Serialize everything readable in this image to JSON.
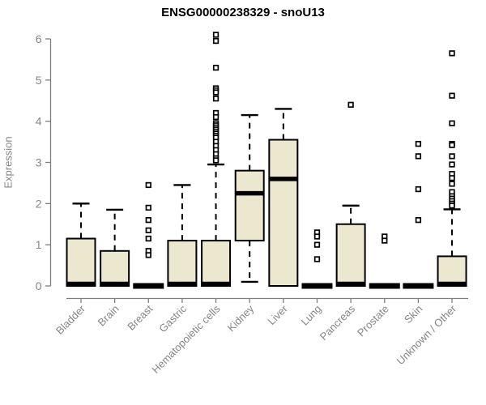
{
  "chart_data": {
    "type": "boxplot",
    "title": "ENSG00000238329 - snoU13",
    "ylabel": "Expression",
    "xlabel": "",
    "ylim": [
      0,
      6.2
    ],
    "yticks": [
      0,
      1,
      2,
      3,
      4,
      5,
      6
    ],
    "grid": false,
    "legend": "none",
    "categories": [
      "Bladder",
      "Brain",
      "Breast",
      "Gastric",
      "Hematopoietic cells",
      "Kidney",
      "Liver",
      "Lung",
      "Pancreas",
      "Prostate",
      "Skin",
      "Unknown / Other"
    ],
    "series": [
      {
        "name": "Bladder",
        "whisker_low": 0,
        "q1": 0,
        "median": 0.05,
        "q3": 1.15,
        "whisker_high": 2.0,
        "outliers": []
      },
      {
        "name": "Brain",
        "whisker_low": 0,
        "q1": 0,
        "median": 0.05,
        "q3": 0.85,
        "whisker_high": 1.85,
        "outliers": []
      },
      {
        "name": "Breast",
        "whisker_low": 0,
        "q1": 0,
        "median": 0,
        "q3": 0,
        "whisker_high": 0,
        "outliers": [
          2.45,
          1.9,
          1.6,
          1.35,
          1.15,
          0.85,
          0.75
        ]
      },
      {
        "name": "Gastric",
        "whisker_low": 0,
        "q1": 0,
        "median": 0.05,
        "q3": 1.1,
        "whisker_high": 2.45,
        "outliers": []
      },
      {
        "name": "Hematopoietic cells",
        "whisker_low": 0,
        "q1": 0,
        "median": 0.05,
        "q3": 1.1,
        "whisker_high": 2.95,
        "outliers": [
          6.1,
          5.95,
          5.3,
          4.8,
          4.75,
          4.7,
          4.55,
          4.2,
          4.1,
          3.95,
          3.9,
          3.85,
          3.8,
          3.75,
          3.7,
          3.65,
          3.6,
          3.5,
          3.4,
          3.3,
          3.2,
          3.1,
          3.05
        ]
      },
      {
        "name": "Kidney",
        "whisker_low": 0.1,
        "q1": 1.1,
        "median": 2.25,
        "q3": 2.8,
        "whisker_high": 4.15,
        "outliers": []
      },
      {
        "name": "Liver",
        "whisker_low": 0,
        "q1": 0,
        "median": 2.6,
        "q3": 3.55,
        "whisker_high": 4.3,
        "outliers": []
      },
      {
        "name": "Lung",
        "whisker_low": 0,
        "q1": 0,
        "median": 0,
        "q3": 0,
        "whisker_high": 0,
        "outliers": [
          1.3,
          1.2,
          1.0,
          0.65
        ]
      },
      {
        "name": "Pancreas",
        "whisker_low": 0,
        "q1": 0,
        "median": 0.05,
        "q3": 1.5,
        "whisker_high": 1.95,
        "outliers": [
          4.4
        ]
      },
      {
        "name": "Prostate",
        "whisker_low": 0,
        "q1": 0,
        "median": 0,
        "q3": 0,
        "whisker_high": 0,
        "outliers": [
          1.2,
          1.1
        ]
      },
      {
        "name": "Skin",
        "whisker_low": 0,
        "q1": 0,
        "median": 0,
        "q3": 0,
        "whisker_high": 0,
        "outliers": [
          3.45,
          3.15,
          2.35,
          1.6
        ]
      },
      {
        "name": "Unknown / Other",
        "whisker_low": 0,
        "q1": 0,
        "median": 0.05,
        "q3": 0.72,
        "whisker_high": 1.86,
        "outliers": [
          5.65,
          4.62,
          3.95,
          3.45,
          3.42,
          3.15,
          2.95,
          2.72,
          2.62,
          2.48,
          2.28,
          2.18,
          2.12,
          2.06,
          2.0,
          1.95
        ]
      }
    ],
    "colors": {
      "background": "#FFFFFF",
      "box_fill": "#ECE7CF",
      "box_stroke": "#000000",
      "median": "#000000",
      "whisker": "#000000",
      "outlier_stroke": "#000000",
      "outlier_fill": "#FFFFFF",
      "axis": "#7E7E7E",
      "tick_label": "#858585",
      "title": "#000000"
    }
  }
}
